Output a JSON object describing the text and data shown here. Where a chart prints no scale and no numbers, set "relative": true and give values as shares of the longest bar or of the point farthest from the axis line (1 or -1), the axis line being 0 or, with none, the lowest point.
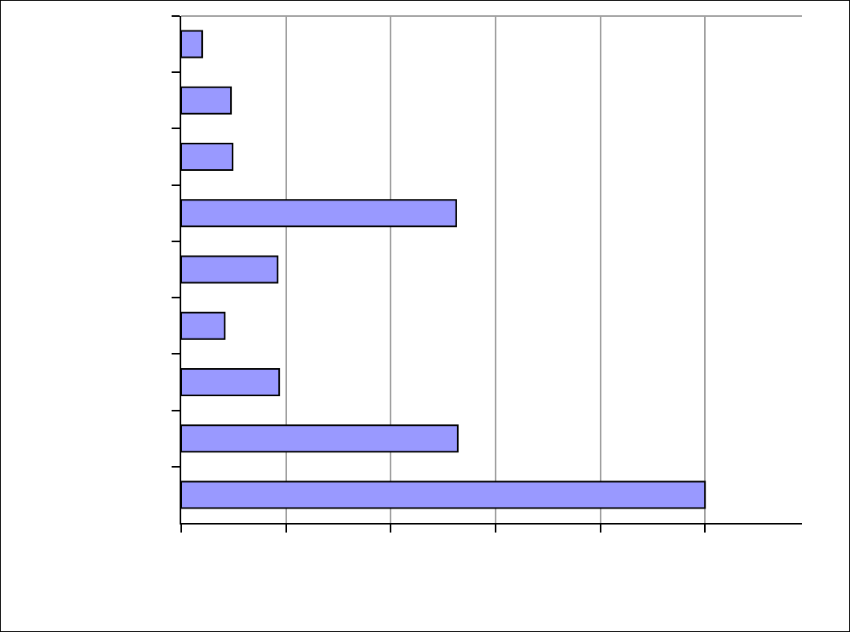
{
  "chart_data": {
    "type": "bar",
    "orientation": "horizontal",
    "relative": true,
    "grid": "x",
    "legend": false,
    "tick_labels": false,
    "categories": [
      null,
      null,
      null,
      null,
      null,
      null,
      null,
      null,
      null
    ],
    "series": [
      {
        "color": "#9999ff",
        "values": [
          0.04,
          0.095,
          0.098,
          0.525,
          0.184,
          0.083,
          0.187,
          0.528,
          1
        ]
      }
    ]
  }
}
